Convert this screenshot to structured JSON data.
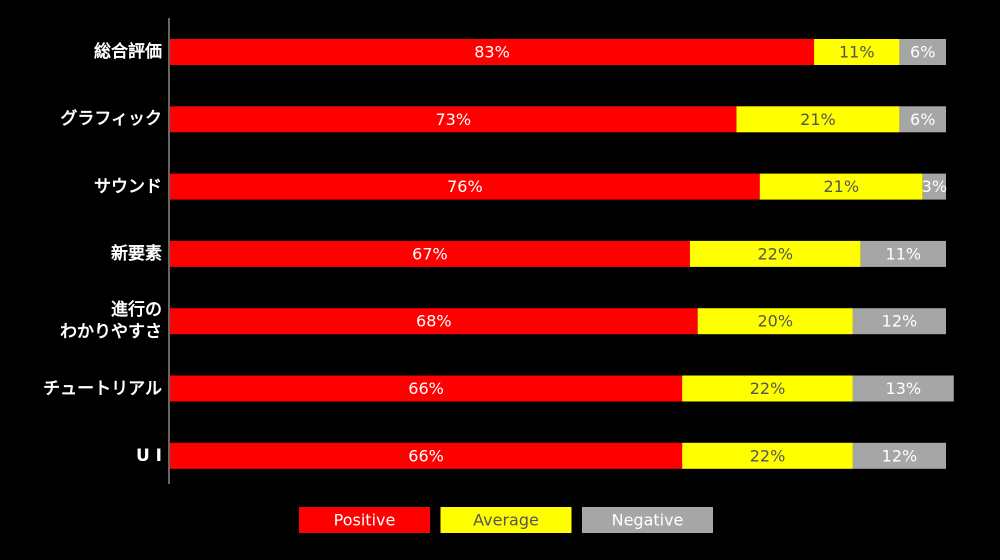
{
  "chart_data": {
    "type": "stacked-bar-horizontal",
    "categories": [
      "総合評価",
      "グラフィック",
      "サウンド",
      "新要素",
      "進行の\nわかりやすさ",
      "チュートリアル",
      "U I"
    ],
    "series": [
      {
        "name": "Positive",
        "color": "#ff0000",
        "values": [
          83,
          73,
          76,
          67,
          68,
          66,
          66
        ],
        "value_labels": [
          "83%",
          "73%",
          "76%",
          "67%",
          "68%",
          "66%",
          "66%"
        ]
      },
      {
        "name": "Average",
        "color": "#ffff00",
        "values": [
          11,
          21,
          21,
          22,
          20,
          22,
          22
        ],
        "value_labels": [
          "11%",
          "21%",
          "21%",
          "22%",
          "20%",
          "22%",
          "22%"
        ]
      },
      {
        "name": "Negative",
        "color": "#a6a6a6",
        "values": [
          6,
          6,
          3,
          11,
          12,
          13,
          12
        ],
        "value_labels": [
          "6%",
          "6%",
          "3%",
          "11%",
          "12%",
          "13%",
          "12%"
        ]
      }
    ],
    "xlim": [
      0,
      100
    ]
  }
}
